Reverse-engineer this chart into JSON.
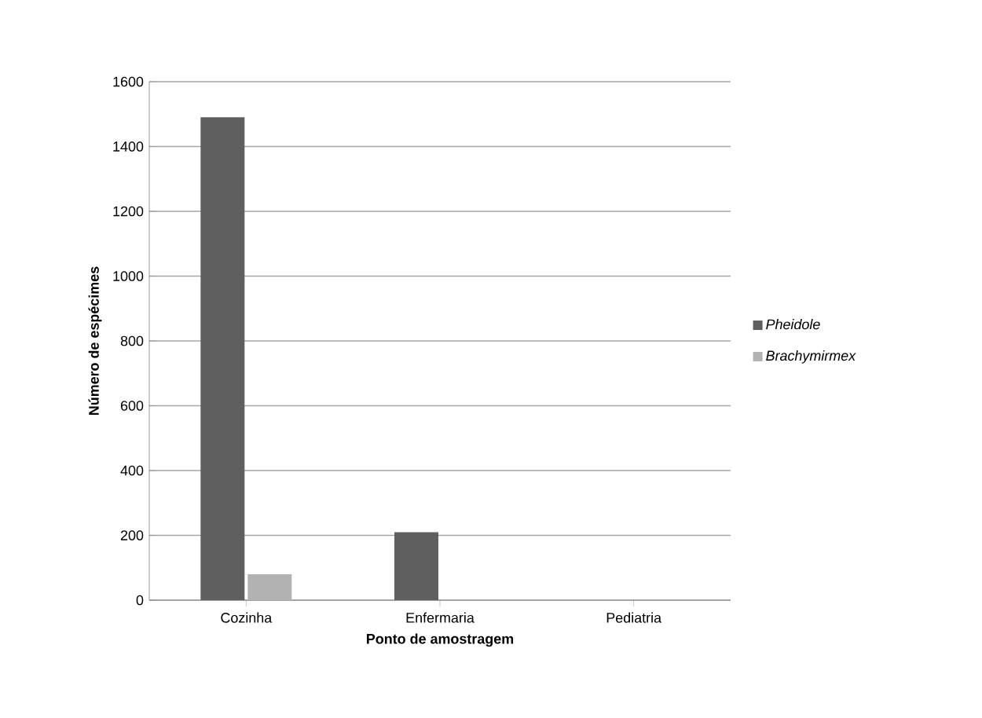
{
  "chart_data": {
    "type": "bar",
    "xlabel": "Ponto de amostragem",
    "ylabel": "Número de espécimes",
    "categories": [
      "Cozinha",
      "Enfermaria",
      "Pediatria"
    ],
    "series": [
      {
        "name": "*Pheidole*",
        "color": "#5f5f5f",
        "values": [
          1490,
          210,
          0
        ]
      },
      {
        "name": "*Brachymirmex*",
        "color": "#b2b2b2",
        "values": [
          80,
          0,
          0
        ]
      }
    ],
    "ylim": [
      0,
      1600
    ],
    "yticks": [
      0,
      200,
      400,
      600,
      800,
      1000,
      1200,
      1400,
      1600
    ],
    "grid": "y",
    "legend": "right"
  }
}
